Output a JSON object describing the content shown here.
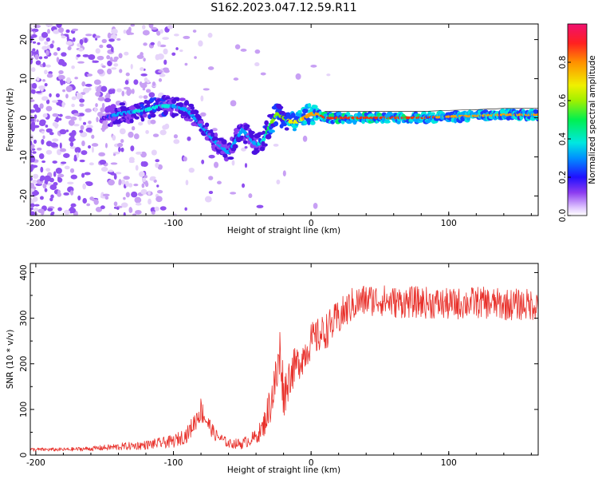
{
  "title": "S162.2023.047.12.59.R11",
  "chart_data": [
    {
      "type": "heatmap",
      "title": "S162.2023.047.12.59.R11",
      "xlabel": "Height of straight line (km)",
      "ylabel": "Frequency (Hz)",
      "xlim": [
        -204,
        165
      ],
      "ylim": [
        -25,
        24
      ],
      "x_ticks": [
        "-200",
        "-100",
        "0",
        "100"
      ],
      "x_tick_values": [
        -200,
        -100,
        0,
        100
      ],
      "y_ticks": [
        "-20",
        "-10",
        "0",
        "10",
        "20"
      ],
      "y_tick_values": [
        -20,
        -10,
        0,
        10,
        20
      ],
      "colorbar": {
        "label": "Normalized spectral amplitude",
        "range": [
          0,
          1
        ],
        "ticks": [
          "0.0",
          "0.2",
          "0.4",
          "0.6",
          "0.8"
        ],
        "tick_values": [
          0.0,
          0.2,
          0.4,
          0.6,
          0.8
        ],
        "colors": [
          "#ffffff",
          "#c89cf0",
          "#8c3cf0",
          "#4a10e0",
          "#1a3cff",
          "#00a8ff",
          "#00e8e0",
          "#00f060",
          "#80f000",
          "#f0f000",
          "#ffa000",
          "#ff3000",
          "#f01070"
        ]
      },
      "ridge": {
        "x": [
          -150,
          -140,
          -130,
          -120,
          -110,
          -100,
          -90,
          -80,
          -70,
          -60,
          -50,
          -40,
          -35,
          -30,
          -25,
          -20,
          -15,
          -10,
          -5,
          0,
          5,
          10,
          20,
          40,
          60,
          80,
          100,
          120,
          140,
          165
        ],
        "frequency": [
          0,
          1,
          1.5,
          2,
          3,
          3,
          2,
          -2,
          -6,
          -9,
          -3,
          -7,
          -6,
          -2,
          1,
          0,
          -1,
          -1,
          0,
          1,
          1,
          0,
          0,
          0,
          0,
          0,
          0.3,
          0.5,
          0.8,
          0.8
        ],
        "amplitude": [
          0.25,
          0.45,
          0.45,
          0.5,
          0.5,
          0.45,
          0.45,
          0.4,
          0.4,
          0.4,
          0.45,
          0.45,
          0.5,
          0.6,
          0.7,
          0.65,
          0.75,
          0.75,
          0.8,
          0.85,
          0.85,
          0.9,
          0.9,
          0.9,
          0.9,
          0.9,
          0.85,
          0.85,
          0.8,
          0.8
        ],
        "color": "#f01070"
      }
    },
    {
      "type": "line",
      "xlabel": "Height of straight line (km)",
      "ylabel": "SNR (10 * v/v)",
      "xlim": [
        -204,
        165
      ],
      "ylim": [
        0,
        420
      ],
      "x_ticks": [
        "-200",
        "-100",
        "0",
        "100"
      ],
      "x_tick_values": [
        -200,
        -100,
        0,
        100
      ],
      "y_ticks": [
        "0",
        "100",
        "200",
        "300",
        "400"
      ],
      "y_tick_values": [
        0,
        100,
        200,
        300,
        400
      ],
      "series": [
        {
          "color": "#e8302a",
          "x": [
            -204,
            -180,
            -160,
            -140,
            -120,
            -100,
            -90,
            -85,
            -80,
            -75,
            -70,
            -60,
            -50,
            -40,
            -35,
            -30,
            -25,
            -22,
            -20,
            -15,
            -10,
            -5,
            0,
            10,
            20,
            30,
            40,
            50,
            60,
            80,
            100,
            120,
            140,
            165
          ],
          "values": [
            12,
            12,
            14,
            18,
            22,
            30,
            45,
            70,
            100,
            70,
            45,
            25,
            25,
            40,
            60,
            110,
            170,
            230,
            130,
            180,
            200,
            220,
            250,
            270,
            300,
            330,
            340,
            340,
            335,
            335,
            330,
            335,
            330,
            330
          ],
          "noise": [
            4,
            4,
            5,
            8,
            10,
            14,
            18,
            22,
            28,
            20,
            14,
            10,
            12,
            16,
            25,
            45,
            60,
            80,
            50,
            45,
            40,
            40,
            40,
            40,
            40,
            38,
            36,
            35,
            35,
            35,
            35,
            35,
            35,
            35
          ]
        }
      ]
    }
  ]
}
